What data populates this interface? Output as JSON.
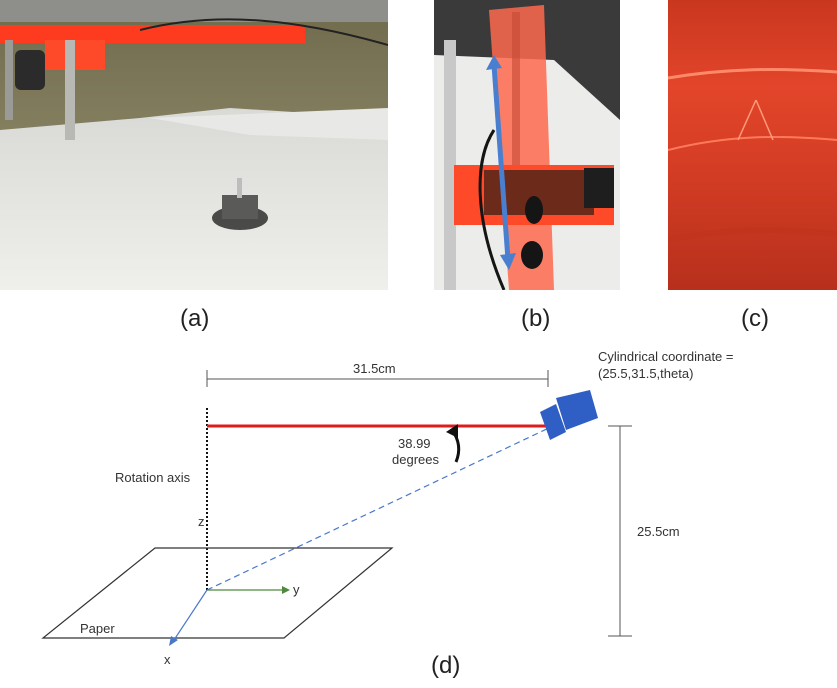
{
  "panels": {
    "a": {
      "caption": "(a)"
    },
    "b": {
      "caption": "(b)"
    },
    "c": {
      "caption": "(c)"
    },
    "d": {
      "caption": "(d)"
    }
  },
  "diagram": {
    "dim_horizontal": "31.5cm",
    "dim_vertical": "25.5cm",
    "angle_value": "38.99",
    "angle_unit": "degrees",
    "coordinate_line1": "Cylindrical coordinate =",
    "coordinate_line2": "(25.5,31.5,theta)",
    "rotation_axis_label": "Rotation axis",
    "z_label": "z",
    "y_label": "y",
    "x_label": "x",
    "paper_label": "Paper"
  },
  "colors": {
    "laser_red": "#e01b1b",
    "camera_blue": "#2f5fc4",
    "ray_blue": "#4a78c8",
    "y_axis_green": "#4d8a3c",
    "acrylic_orange": "#ff3b1f"
  }
}
